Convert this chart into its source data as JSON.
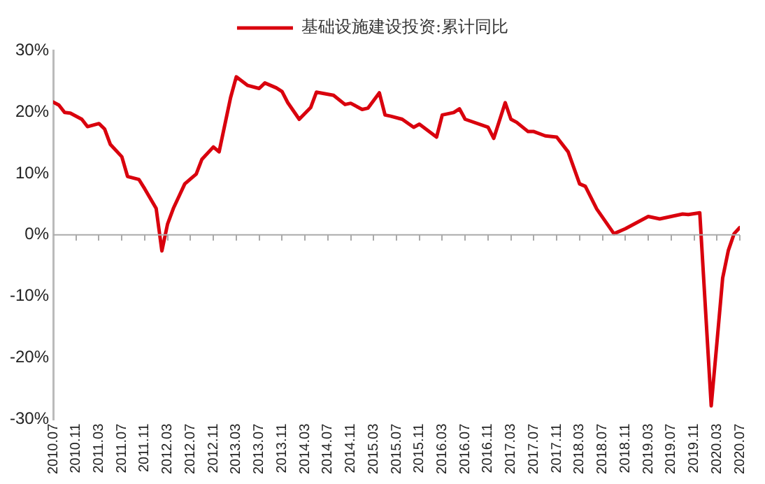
{
  "chart_data": {
    "type": "line",
    "legend": "top",
    "marker": "none",
    "line_style": "solid",
    "grid": false,
    "xlim": [
      "2010-07",
      "2020-07"
    ],
    "xticks": [
      {
        "value": "2010-07",
        "label": "2010.07"
      },
      {
        "value": "2010-11",
        "label": "2010.11"
      },
      {
        "value": "2011-03",
        "label": "2011.03"
      },
      {
        "value": "2011-07",
        "label": "2011.07"
      },
      {
        "value": "2011-11",
        "label": "2011.11"
      },
      {
        "value": "2012-03",
        "label": "2012.03"
      },
      {
        "value": "2012-07",
        "label": "2012.07"
      },
      {
        "value": "2012-11",
        "label": "2012.11"
      },
      {
        "value": "2013-03",
        "label": "2013.03"
      },
      {
        "value": "2013-07",
        "label": "2013.07"
      },
      {
        "value": "2013-11",
        "label": "2013.11"
      },
      {
        "value": "2014-03",
        "label": "2014.03"
      },
      {
        "value": "2014-07",
        "label": "2014.07"
      },
      {
        "value": "2014-11",
        "label": "2014.11"
      },
      {
        "value": "2015-03",
        "label": "2015.03"
      },
      {
        "value": "2015-07",
        "label": "2015.07"
      },
      {
        "value": "2015-11",
        "label": "2015.11"
      },
      {
        "value": "2016-03",
        "label": "2016.03"
      },
      {
        "value": "2016-07",
        "label": "2016.07"
      },
      {
        "value": "2016-11",
        "label": "2016.11"
      },
      {
        "value": "2017-03",
        "label": "2017.03"
      },
      {
        "value": "2017-07",
        "label": "2017.07"
      },
      {
        "value": "2017-11",
        "label": "2017.11"
      },
      {
        "value": "2018-03",
        "label": "2018.03"
      },
      {
        "value": "2018-07",
        "label": "2018.07"
      },
      {
        "value": "2018-11",
        "label": "2018.11"
      },
      {
        "value": "2019-03",
        "label": "2019.03"
      },
      {
        "value": "2019-07",
        "label": "2019.07"
      },
      {
        "value": "2019-11",
        "label": "2019.11"
      },
      {
        "value": "2020-03",
        "label": "2020.03"
      },
      {
        "value": "2020-07",
        "label": "2020.07"
      }
    ],
    "ylim": [
      -30,
      30
    ],
    "ref_lines": [
      {
        "axis": "y",
        "value": 0,
        "color": "#aaaaaa",
        "line_style": "solid"
      }
    ],
    "yticks": [
      {
        "value": -30,
        "label": "-30%"
      },
      {
        "value": -20,
        "label": "-20%"
      },
      {
        "value": -10,
        "label": "-10%"
      },
      {
        "value": 0,
        "label": "0%"
      },
      {
        "value": 10,
        "label": "10%"
      },
      {
        "value": 20,
        "label": "20%"
      },
      {
        "value": 30,
        "label": "30%"
      }
    ],
    "series": [
      {
        "name": "基础设施建设投资:累计同比",
        "color": "#d9000d",
        "x": [
          "2010-07",
          "2010-08",
          "2010-09",
          "2010-10",
          "2010-12",
          "2011-01",
          "2011-03",
          "2011-04",
          "2011-05",
          "2011-07",
          "2011-08",
          "2011-10",
          "2011-11",
          "2012-01",
          "2012-02",
          "2012-03",
          "2012-04",
          "2012-06",
          "2012-08",
          "2012-09",
          "2012-11",
          "2012-12",
          "2013-02",
          "2013-03",
          "2013-05",
          "2013-07",
          "2013-08",
          "2013-10",
          "2013-11",
          "2013-12",
          "2014-02",
          "2014-04",
          "2014-05",
          "2014-08",
          "2014-10",
          "2014-11",
          "2015-01",
          "2015-02",
          "2015-04",
          "2015-05",
          "2015-06",
          "2015-08",
          "2015-10",
          "2015-11",
          "2016-02",
          "2016-03",
          "2016-05",
          "2016-06",
          "2016-07",
          "2016-11",
          "2016-12",
          "2017-02",
          "2017-03",
          "2017-04",
          "2017-06",
          "2017-07",
          "2017-09",
          "2017-11",
          "2018-01",
          "2018-03",
          "2018-04",
          "2018-06",
          "2018-09",
          "2018-11",
          "2019-03",
          "2019-05",
          "2019-07",
          "2019-09",
          "2019-10",
          "2019-12",
          "2020-02",
          "2020-03",
          "2020-04",
          "2020-05",
          "2020-06",
          "2020-07"
        ],
        "values": [
          21.6,
          21.1,
          19.9,
          19.8,
          18.8,
          17.6,
          18.1,
          17.2,
          14.7,
          12.7,
          9.5,
          9.0,
          7.5,
          4.3,
          -2.6,
          1.8,
          4.3,
          8.3,
          9.9,
          12.3,
          14.3,
          13.5,
          22.3,
          25.7,
          24.3,
          23.8,
          24.7,
          23.9,
          23.3,
          21.5,
          18.8,
          20.7,
          23.2,
          22.7,
          21.2,
          21.4,
          20.4,
          20.6,
          23.1,
          19.5,
          19.3,
          18.8,
          17.5,
          18.0,
          15.9,
          19.5,
          19.9,
          20.5,
          18.8,
          17.5,
          15.7,
          21.5,
          18.8,
          18.3,
          16.8,
          16.8,
          16.1,
          15.9,
          13.5,
          8.3,
          7.9,
          4.2,
          0.2,
          1.0,
          3.0,
          2.6,
          3.0,
          3.4,
          3.3,
          3.6,
          -27.8,
          -17.5,
          -7,
          -2.5,
          0.2,
          1.2
        ]
      }
    ]
  }
}
